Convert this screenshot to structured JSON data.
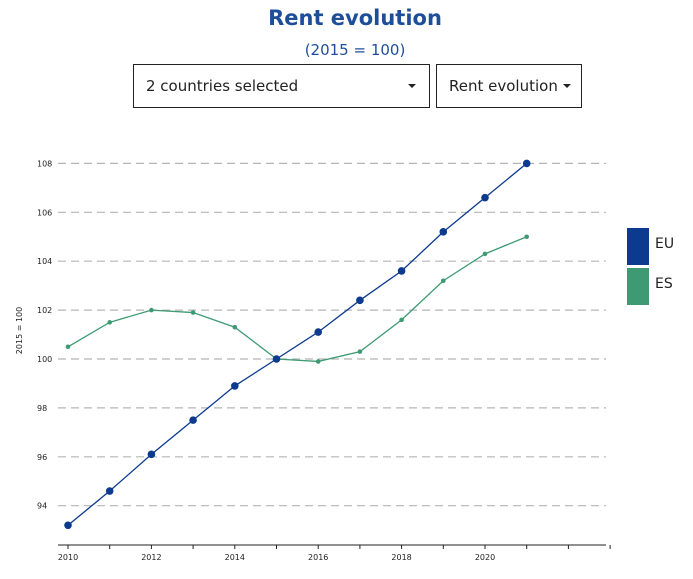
{
  "header": {
    "title": "Rent evolution",
    "subtitle": "(2015 = 100)"
  },
  "controls": {
    "countries_label": "2 countries selected",
    "indicator_label": "Rent evolution"
  },
  "legend": [
    {
      "label": "EU",
      "color": "#0b3a8f"
    },
    {
      "label": "ES",
      "color": "#3e9a72"
    }
  ],
  "chart_data": {
    "type": "line",
    "title": "Rent evolution",
    "subtitle": "(2015 = 100)",
    "ylabel": "2015 = 100",
    "xlabel": "",
    "x": [
      2010,
      2011,
      2012,
      2013,
      2014,
      2015,
      2016,
      2017,
      2018,
      2019,
      2020,
      2021
    ],
    "xlim": [
      2010,
      2023
    ],
    "ylim": [
      92.6,
      109.5
    ],
    "x_ticks": [
      2010,
      2012,
      2014,
      2016,
      2018,
      2020
    ],
    "y_ticks": [
      94,
      96,
      98,
      100,
      102,
      104,
      106,
      108
    ],
    "grid": "horizontal-dashed",
    "legend_position": "right",
    "series": [
      {
        "name": "EU",
        "color": "#0b3a8f",
        "values": [
          93.2,
          94.6,
          96.1,
          97.5,
          98.9,
          100.0,
          101.1,
          102.4,
          103.6,
          105.2,
          106.6,
          108.0
        ]
      },
      {
        "name": "ES",
        "color": "#3e9a72",
        "values": [
          100.5,
          101.5,
          102.0,
          101.9,
          101.3,
          100.0,
          99.9,
          100.3,
          101.6,
          103.2,
          104.3,
          105.0
        ]
      }
    ]
  }
}
